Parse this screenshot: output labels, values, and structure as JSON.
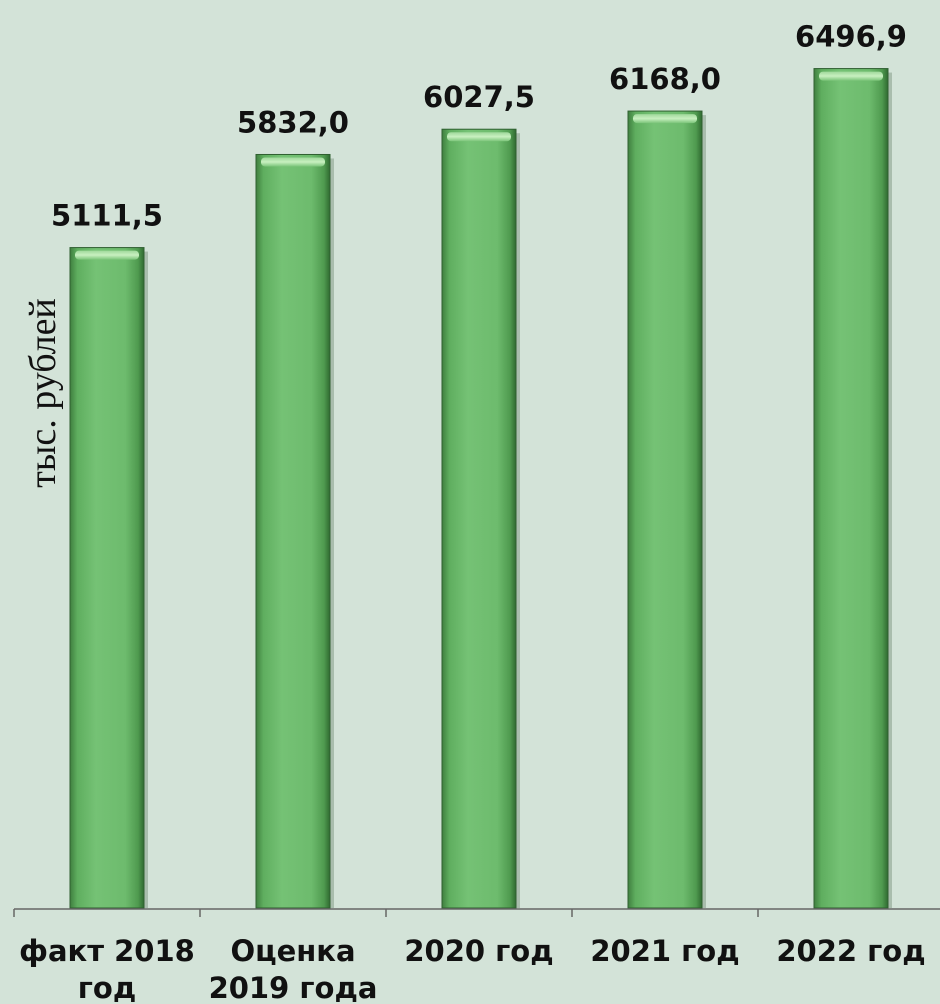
{
  "chart_data": {
    "type": "bar",
    "ylabel": "тыс. рублей",
    "categories": [
      [
        "факт 2018",
        "год"
      ],
      [
        "Оценка",
        "2019 года"
      ],
      [
        "2020 год"
      ],
      [
        "2021 год"
      ],
      [
        "2022 год"
      ]
    ],
    "values": [
      5111.5,
      5832.0,
      6027.5,
      6168.0,
      6496.9
    ],
    "value_labels": [
      "5111,5",
      "5832,0",
      "6027,5",
      "6168,0",
      "6496,9"
    ],
    "ylim": [
      0,
      7000
    ],
    "grid": false,
    "legend": "none",
    "colors": {
      "background": "#d3e3d8",
      "bar": "#6fbf6f",
      "bar_dark": "#3f7f3f",
      "bar_highlight": "#b9e8b0",
      "axis": "#666666",
      "text": "#111111"
    }
  }
}
